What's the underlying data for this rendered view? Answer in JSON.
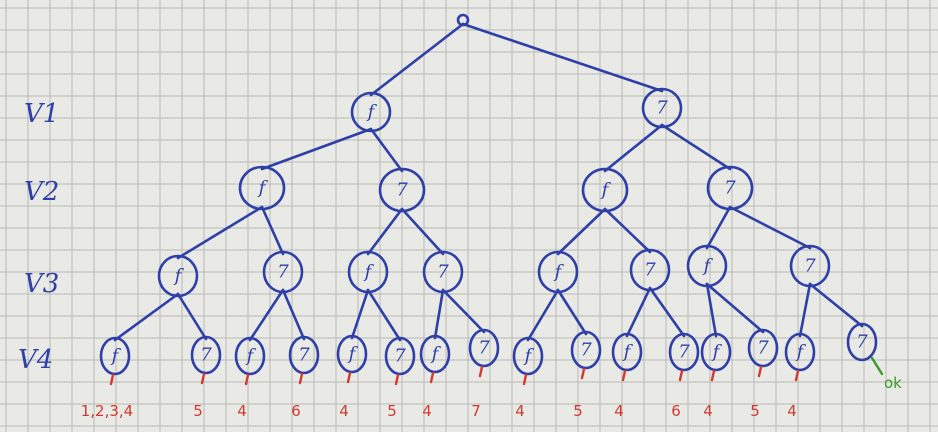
{
  "levels": [
    "V1",
    "V2",
    "V3",
    "V4"
  ],
  "tree": {
    "root": "",
    "nodes": [
      {
        "id": "v1-l",
        "level": 1,
        "parent": "root",
        "label": "f"
      },
      {
        "id": "v1-r",
        "level": 1,
        "parent": "root",
        "label": "7"
      },
      {
        "id": "v2-1",
        "level": 2,
        "parent": "v1-l",
        "label": "f"
      },
      {
        "id": "v2-2",
        "level": 2,
        "parent": "v1-l",
        "label": "7"
      },
      {
        "id": "v2-3",
        "level": 2,
        "parent": "v1-r",
        "label": "f"
      },
      {
        "id": "v2-4",
        "level": 2,
        "parent": "v1-r",
        "label": "7"
      },
      {
        "id": "v3-1",
        "level": 3,
        "parent": "v2-1",
        "label": "f"
      },
      {
        "id": "v3-2",
        "level": 3,
        "parent": "v2-1",
        "label": "7"
      },
      {
        "id": "v3-3",
        "level": 3,
        "parent": "v2-2",
        "label": "f"
      },
      {
        "id": "v3-4",
        "level": 3,
        "parent": "v2-2",
        "label": "7"
      },
      {
        "id": "v3-5",
        "level": 3,
        "parent": "v2-3",
        "label": "f"
      },
      {
        "id": "v3-6",
        "level": 3,
        "parent": "v2-3",
        "label": "7"
      },
      {
        "id": "v3-7",
        "level": 3,
        "parent": "v2-4",
        "label": "f"
      },
      {
        "id": "v3-8",
        "level": 3,
        "parent": "v2-4",
        "label": "7"
      },
      {
        "id": "v4-1",
        "level": 4,
        "parent": "v3-1",
        "label": "f",
        "result": "1,2,3,4",
        "result_color": "red"
      },
      {
        "id": "v4-2",
        "level": 4,
        "parent": "v3-1",
        "label": "7",
        "result": "5",
        "result_color": "red"
      },
      {
        "id": "v4-3",
        "level": 4,
        "parent": "v3-2",
        "label": "f",
        "result": "4",
        "result_color": "red"
      },
      {
        "id": "v4-4",
        "level": 4,
        "parent": "v3-2",
        "label": "7",
        "result": "6",
        "result_color": "red"
      },
      {
        "id": "v4-5",
        "level": 4,
        "parent": "v3-3",
        "label": "f",
        "result": "4",
        "result_color": "red"
      },
      {
        "id": "v4-6",
        "level": 4,
        "parent": "v3-3",
        "label": "7",
        "result": "5",
        "result_color": "red"
      },
      {
        "id": "v4-7",
        "level": 4,
        "parent": "v3-4",
        "label": "f",
        "result": "4",
        "result_color": "red"
      },
      {
        "id": "v4-8",
        "level": 4,
        "parent": "v3-4",
        "label": "7",
        "result": "7",
        "result_color": "red"
      },
      {
        "id": "v4-9",
        "level": 4,
        "parent": "v3-5",
        "label": "f",
        "result": "4",
        "result_color": "red"
      },
      {
        "id": "v4-10",
        "level": 4,
        "parent": "v3-5",
        "label": "7",
        "result": "5",
        "result_color": "red"
      },
      {
        "id": "v4-11",
        "level": 4,
        "parent": "v3-6",
        "label": "f",
        "result": "4",
        "result_color": "red"
      },
      {
        "id": "v4-12",
        "level": 4,
        "parent": "v3-6",
        "label": "7",
        "result": "6",
        "result_color": "red"
      },
      {
        "id": "v4-13",
        "level": 4,
        "parent": "v3-7",
        "label": "f",
        "result": "4",
        "result_color": "red"
      },
      {
        "id": "v4-14",
        "level": 4,
        "parent": "v3-7",
        "label": "7",
        "result": "5",
        "result_color": "red"
      },
      {
        "id": "v4-15",
        "level": 4,
        "parent": "v3-8",
        "label": "f",
        "result": "4",
        "result_color": "red"
      },
      {
        "id": "v4-16",
        "level": 4,
        "parent": "v3-8",
        "label": "7",
        "result": "ok",
        "result_color": "green"
      }
    ]
  },
  "colors": {
    "ink_blue": "#2f3fa8",
    "ink_red": "#d23a2f",
    "ink_green": "#3b9a2a",
    "paper": "#e9e9e6",
    "grid": "#b9b9b6"
  }
}
